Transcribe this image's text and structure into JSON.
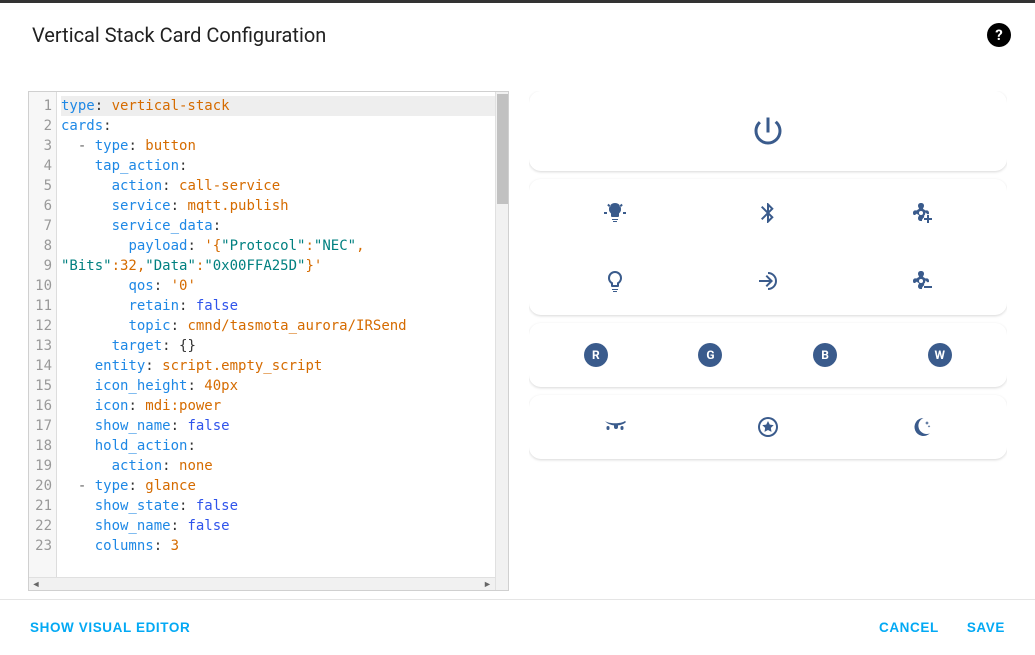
{
  "dialog": {
    "title": "Vertical Stack Card Configuration"
  },
  "editor": {
    "lines": [
      {
        "n": 1,
        "active": true,
        "tokens": [
          {
            "t": "type",
            "c": "tk-k"
          },
          {
            "t": ": ",
            "c": ""
          },
          {
            "t": "vertical-stack",
            "c": "tk-s"
          }
        ]
      },
      {
        "n": 2,
        "active": false,
        "tokens": [
          {
            "t": "cards",
            "c": "tk-k"
          },
          {
            "t": ":",
            "c": ""
          }
        ]
      },
      {
        "n": 3,
        "active": false,
        "tokens": [
          {
            "t": "  - ",
            "c": "tk-p"
          },
          {
            "t": "type",
            "c": "tk-k"
          },
          {
            "t": ": ",
            "c": ""
          },
          {
            "t": "button",
            "c": "tk-s"
          }
        ]
      },
      {
        "n": 4,
        "active": false,
        "tokens": [
          {
            "t": "    ",
            "c": ""
          },
          {
            "t": "tap_action",
            "c": "tk-k"
          },
          {
            "t": ":",
            "c": ""
          }
        ]
      },
      {
        "n": 5,
        "active": false,
        "tokens": [
          {
            "t": "      ",
            "c": ""
          },
          {
            "t": "action",
            "c": "tk-k"
          },
          {
            "t": ": ",
            "c": ""
          },
          {
            "t": "call-service",
            "c": "tk-s"
          }
        ]
      },
      {
        "n": 6,
        "active": false,
        "tokens": [
          {
            "t": "      ",
            "c": ""
          },
          {
            "t": "service",
            "c": "tk-k"
          },
          {
            "t": ": ",
            "c": ""
          },
          {
            "t": "mqtt.publish",
            "c": "tk-s"
          }
        ]
      },
      {
        "n": 7,
        "active": false,
        "tokens": [
          {
            "t": "      ",
            "c": ""
          },
          {
            "t": "service_data",
            "c": "tk-k"
          },
          {
            "t": ":",
            "c": ""
          }
        ]
      },
      {
        "n": 8,
        "active": false,
        "tokens": [
          {
            "t": "        ",
            "c": ""
          },
          {
            "t": "payload",
            "c": "tk-k"
          },
          {
            "t": ": ",
            "c": ""
          },
          {
            "t": "'{",
            "c": "tk-s"
          },
          {
            "t": "\"Protocol\"",
            "c": "tk-q"
          },
          {
            "t": ":",
            "c": "tk-s"
          },
          {
            "t": "\"NEC\"",
            "c": "tk-q"
          },
          {
            "t": ",",
            "c": "tk-s"
          }
        ]
      },
      {
        "n": 9,
        "active": false,
        "tokens": [
          {
            "t": "\"Bits\"",
            "c": "tk-q"
          },
          {
            "t": ":32,",
            "c": "tk-s"
          },
          {
            "t": "\"Data\"",
            "c": "tk-q"
          },
          {
            "t": ":",
            "c": "tk-s"
          },
          {
            "t": "\"0x00FFA25D\"",
            "c": "tk-q"
          },
          {
            "t": "}'",
            "c": "tk-s"
          }
        ]
      },
      {
        "n": 10,
        "active": false,
        "tokens": [
          {
            "t": "        ",
            "c": ""
          },
          {
            "t": "qos",
            "c": "tk-k"
          },
          {
            "t": ": ",
            "c": ""
          },
          {
            "t": "'0'",
            "c": "tk-s"
          }
        ]
      },
      {
        "n": 11,
        "active": false,
        "tokens": [
          {
            "t": "        ",
            "c": ""
          },
          {
            "t": "retain",
            "c": "tk-k"
          },
          {
            "t": ": ",
            "c": ""
          },
          {
            "t": "false",
            "c": "tk-b"
          }
        ]
      },
      {
        "n": 12,
        "active": false,
        "tokens": [
          {
            "t": "        ",
            "c": ""
          },
          {
            "t": "topic",
            "c": "tk-k"
          },
          {
            "t": ": ",
            "c": ""
          },
          {
            "t": "cmnd/tasmota_aurora/IRSend",
            "c": "tk-s"
          }
        ]
      },
      {
        "n": 13,
        "active": false,
        "tokens": [
          {
            "t": "      ",
            "c": ""
          },
          {
            "t": "target",
            "c": "tk-k"
          },
          {
            "t": ": {}",
            "c": ""
          }
        ]
      },
      {
        "n": 14,
        "active": false,
        "tokens": [
          {
            "t": "    ",
            "c": ""
          },
          {
            "t": "entity",
            "c": "tk-k"
          },
          {
            "t": ": ",
            "c": ""
          },
          {
            "t": "script.empty_script",
            "c": "tk-s"
          }
        ]
      },
      {
        "n": 15,
        "active": false,
        "tokens": [
          {
            "t": "    ",
            "c": ""
          },
          {
            "t": "icon_height",
            "c": "tk-k"
          },
          {
            "t": ": ",
            "c": ""
          },
          {
            "t": "40px",
            "c": "tk-s"
          }
        ]
      },
      {
        "n": 16,
        "active": false,
        "tokens": [
          {
            "t": "    ",
            "c": ""
          },
          {
            "t": "icon",
            "c": "tk-k"
          },
          {
            "t": ": ",
            "c": ""
          },
          {
            "t": "mdi:power",
            "c": "tk-s"
          }
        ]
      },
      {
        "n": 17,
        "active": false,
        "tokens": [
          {
            "t": "    ",
            "c": ""
          },
          {
            "t": "show_name",
            "c": "tk-k"
          },
          {
            "t": ": ",
            "c": ""
          },
          {
            "t": "false",
            "c": "tk-b"
          }
        ]
      },
      {
        "n": 18,
        "active": false,
        "tokens": [
          {
            "t": "    ",
            "c": ""
          },
          {
            "t": "hold_action",
            "c": "tk-k"
          },
          {
            "t": ":",
            "c": ""
          }
        ]
      },
      {
        "n": 19,
        "active": false,
        "tokens": [
          {
            "t": "      ",
            "c": ""
          },
          {
            "t": "action",
            "c": "tk-k"
          },
          {
            "t": ": ",
            "c": ""
          },
          {
            "t": "none",
            "c": "tk-s"
          }
        ]
      },
      {
        "n": 20,
        "active": false,
        "tokens": [
          {
            "t": "  - ",
            "c": "tk-p"
          },
          {
            "t": "type",
            "c": "tk-k"
          },
          {
            "t": ": ",
            "c": ""
          },
          {
            "t": "glance",
            "c": "tk-s"
          }
        ]
      },
      {
        "n": 21,
        "active": false,
        "tokens": [
          {
            "t": "    ",
            "c": ""
          },
          {
            "t": "show_state",
            "c": "tk-k"
          },
          {
            "t": ": ",
            "c": ""
          },
          {
            "t": "false",
            "c": "tk-b"
          }
        ]
      },
      {
        "n": 22,
        "active": false,
        "tokens": [
          {
            "t": "    ",
            "c": ""
          },
          {
            "t": "show_name",
            "c": "tk-k"
          },
          {
            "t": ": ",
            "c": ""
          },
          {
            "t": "false",
            "c": "tk-b"
          }
        ]
      },
      {
        "n": 23,
        "active": false,
        "tokens": [
          {
            "t": "    ",
            "c": ""
          },
          {
            "t": "columns",
            "c": "tk-k"
          },
          {
            "t": ": ",
            "c": ""
          },
          {
            "t": "3",
            "c": "tk-s"
          }
        ]
      }
    ]
  },
  "preview": {
    "icon_color": "#3a5b8c",
    "badges": {
      "r": "R",
      "g": "G",
      "b": "B",
      "w": "W"
    }
  },
  "footer": {
    "visual_editor": "Show Visual Editor",
    "cancel": "Cancel",
    "save": "Save"
  }
}
